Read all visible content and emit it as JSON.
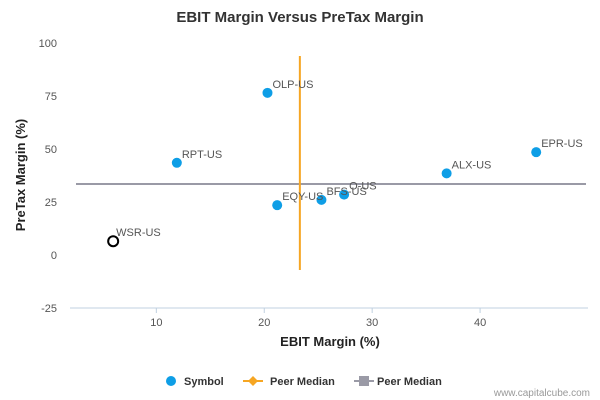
{
  "chart_data": {
    "type": "scatter",
    "title": "EBIT Margin Versus PreTax Margin",
    "xlabel": "EBIT Margin (%)",
    "ylabel": "PreTax Margin (%)",
    "xlim": [
      2,
      50
    ],
    "ylim": [
      -25,
      100
    ],
    "x_ticks": [
      10,
      20,
      30,
      40
    ],
    "y_ticks": [
      100,
      75,
      50,
      25,
      0,
      -25
    ],
    "grid": false,
    "legend_position": "bottom",
    "colors": {
      "symbol": "#0e9ee6",
      "peer_median_x": "#f6a623",
      "peer_median_y": "#9a9aa6",
      "highlight_stroke": "#000000"
    },
    "series": [
      {
        "name": "Symbol",
        "points": [
          {
            "label": "OLP-US",
            "x": 20.3,
            "y": 76.5
          },
          {
            "label": "RPT-US",
            "x": 11.9,
            "y": 43.5
          },
          {
            "label": "EPR-US",
            "x": 45.2,
            "y": 48.5
          },
          {
            "label": "ALX-US",
            "x": 36.9,
            "y": 38.5
          },
          {
            "label": "O-US",
            "x": 27.4,
            "y": 28.5
          },
          {
            "label": "BFS-US",
            "x": 25.3,
            "y": 26.0
          },
          {
            "label": "EQY-US",
            "x": 21.2,
            "y": 23.5
          }
        ]
      }
    ],
    "highlight_point": {
      "label": "WSR-US",
      "x": 6.0,
      "y": 6.5
    },
    "peer_median_x": {
      "name": "Peer Median",
      "value": 23.3
    },
    "peer_median_y": {
      "name": "Peer Median",
      "value": 33.5
    }
  },
  "credit": "www.capitalcube.com"
}
